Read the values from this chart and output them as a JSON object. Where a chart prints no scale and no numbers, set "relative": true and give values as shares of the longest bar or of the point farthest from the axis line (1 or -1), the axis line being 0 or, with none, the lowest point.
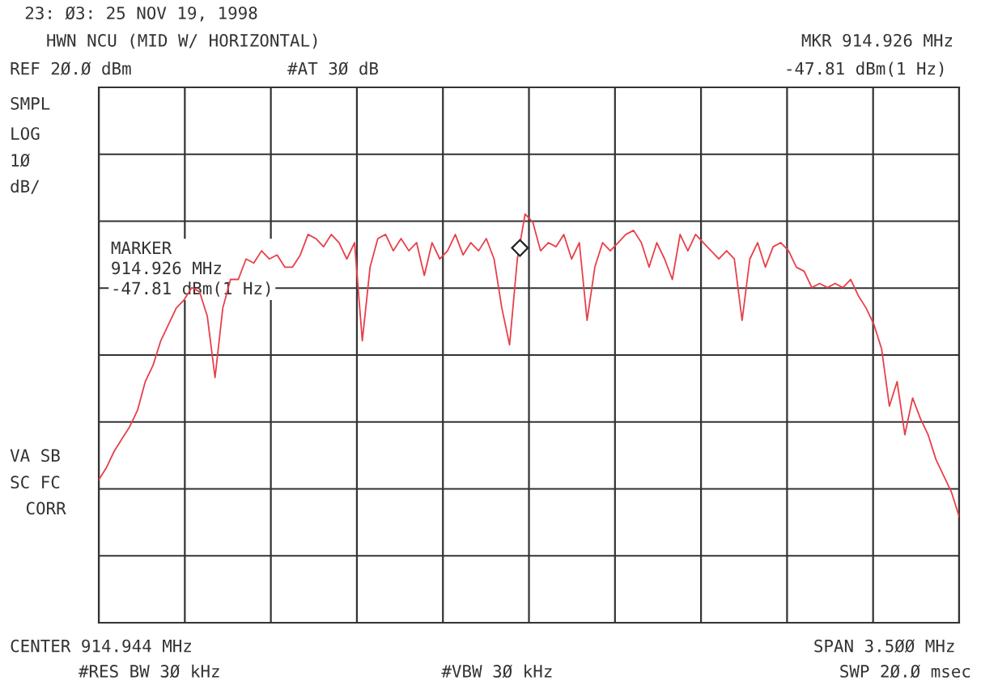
{
  "chart_data": {
    "type": "line",
    "relative": true,
    "grid": true,
    "legend": false,
    "tick_labels": false,
    "title": "23: Ø3: 25 NOV 19, 1998",
    "subtitle": "HWN NCU (MID W/ HORIZONTAL)",
    "annotations": [
      "REF 2Ø.Ø dBm",
      "#AT 3Ø dB",
      "MKR 914.926 MHz",
      "-47.81 dBm(1 Hz)",
      "SMPL",
      "LOG",
      "1Ø",
      "dB/",
      "VA SB",
      "SC FC",
      "CORR",
      "MARKER\n914.926 MHz\n-47.81 dBm(1 Hz)",
      "CENTER 914.944 MHz",
      "SPAN 3.5ØØ MHz",
      "#RES BW 3Ø kHz",
      "#VBW 3Ø kHz",
      "SWP 2Ø.Ø msec"
    ],
    "categories": [
      null,
      null,
      null,
      null,
      null,
      null,
      null,
      null,
      null,
      null,
      null,
      null,
      null,
      null,
      null,
      null,
      null,
      null,
      null,
      null,
      null,
      null,
      null,
      null,
      null,
      null,
      null,
      null,
      null,
      null,
      null,
      null,
      null,
      null,
      null,
      null,
      null,
      null,
      null,
      null,
      null,
      null,
      null,
      null,
      null,
      null,
      null,
      null,
      null,
      null,
      null,
      null,
      null,
      null,
      null,
      null,
      null,
      null,
      null,
      null,
      null,
      null,
      null,
      null,
      null,
      null,
      null,
      null,
      null,
      null,
      null,
      null,
      null,
      null,
      null,
      null,
      null,
      null,
      null,
      null,
      null,
      null,
      null,
      null,
      null,
      null,
      null,
      null,
      null,
      null,
      null,
      null,
      null,
      null,
      null,
      null,
      null,
      null,
      null,
      null,
      null,
      null,
      null,
      null,
      null,
      null,
      null,
      null,
      null,
      null,
      null,
      null
    ],
    "series": [
      {
        "color": "#e8404a",
        "marker": "none",
        "line_style": "solid",
        "values": [
          0.35,
          0.38,
          0.42,
          0.45,
          0.48,
          0.52,
          0.59,
          0.63,
          0.69,
          0.73,
          0.77,
          0.79,
          0.82,
          0.81,
          0.75,
          0.6,
          0.77,
          0.84,
          0.84,
          0.89,
          0.88,
          0.91,
          0.89,
          0.9,
          0.87,
          0.87,
          0.9,
          0.95,
          0.94,
          0.92,
          0.95,
          0.93,
          0.89,
          0.93,
          0.69,
          0.87,
          0.94,
          0.95,
          0.91,
          0.94,
          0.91,
          0.93,
          0.85,
          0.93,
          0.89,
          0.91,
          0.95,
          0.9,
          0.93,
          0.91,
          0.94,
          0.89,
          0.77,
          0.68,
          0.89,
          1,
          0.98,
          0.91,
          0.93,
          0.92,
          0.95,
          0.89,
          0.93,
          0.74,
          0.87,
          0.93,
          0.91,
          0.93,
          0.95,
          0.96,
          0.93,
          0.87,
          0.93,
          0.89,
          0.84,
          0.95,
          0.91,
          0.95,
          0.93,
          0.91,
          0.89,
          0.91,
          0.89,
          0.74,
          0.89,
          0.93,
          0.87,
          0.92,
          0.93,
          0.91,
          0.87,
          0.86,
          0.82,
          0.83,
          0.82,
          0.83,
          0.82,
          0.84,
          0.8,
          0.77,
          0.73,
          0.67,
          0.53,
          0.59,
          0.46,
          0.55,
          0.5,
          0.46,
          0.4,
          0.36,
          0.32,
          0.26
        ]
      }
    ]
  }
}
